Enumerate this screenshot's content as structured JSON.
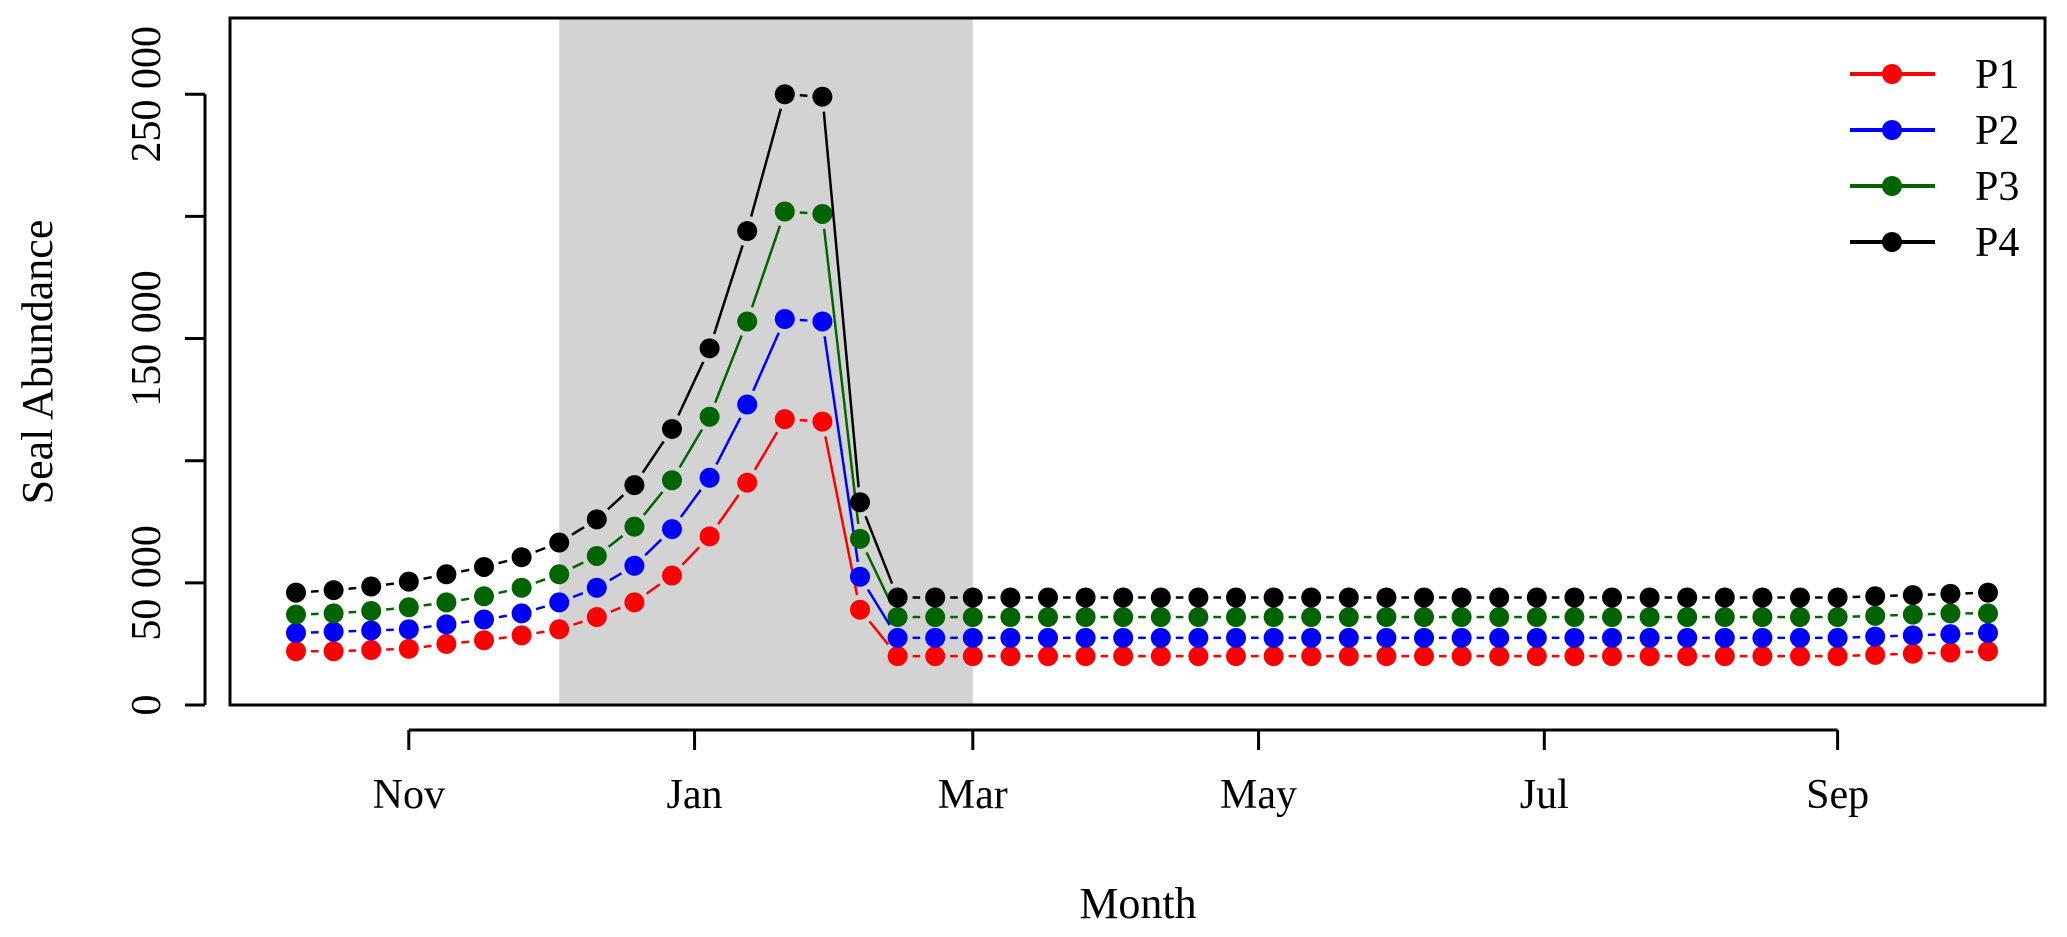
{
  "chart_data": {
    "type": "line",
    "title": "",
    "xlabel": "Month",
    "ylabel": "Seal Abundance",
    "ylim": [
      0,
      280000
    ],
    "yticks": [
      0,
      50000,
      100000,
      150000,
      200000,
      250000
    ],
    "ytick_labels": [
      "0",
      "50 000",
      "",
      "150 000",
      "",
      "250 000"
    ],
    "xtick_labels": [
      "Nov",
      "Jan",
      "Mar",
      "May",
      "Jul",
      "Sep"
    ],
    "xtick_weeks": [
      3,
      10.6,
      18,
      25.6,
      33.2,
      41
    ],
    "x_unit": "week",
    "shaded_region": {
      "from_week": 7,
      "to_week": 18
    },
    "grid": false,
    "legend_position": "top-right",
    "series": [
      {
        "name": "P1",
        "color": "#ff0000",
        "values": [
          22000,
          22000,
          22500,
          23000,
          25000,
          26500,
          28500,
          31000,
          36000,
          42000,
          53000,
          69000,
          91000,
          117000,
          116000,
          39000,
          20000,
          20000,
          20000,
          20000,
          20000,
          20000,
          20000,
          20000,
          20000,
          20000,
          20000,
          20000,
          20000,
          20000,
          20000,
          20000,
          20000,
          20000,
          20000,
          20000,
          20000,
          20000,
          20000,
          20000,
          20000,
          20000,
          20500,
          21000,
          21500,
          22000
        ]
      },
      {
        "name": "P2",
        "color": "#0000ff",
        "values": [
          29500,
          30000,
          30500,
          31000,
          33000,
          35000,
          37500,
          42000,
          48000,
          57000,
          72000,
          93000,
          123000,
          158000,
          157000,
          52500,
          27500,
          27500,
          27500,
          27500,
          27500,
          27500,
          27500,
          27500,
          27500,
          27500,
          27500,
          27500,
          27500,
          27500,
          27500,
          27500,
          27500,
          27500,
          27500,
          27500,
          27500,
          27500,
          27500,
          27500,
          27500,
          27500,
          28000,
          28500,
          29000,
          29500
        ]
      },
      {
        "name": "P3",
        "color": "#006400",
        "values": [
          37000,
          37500,
          38500,
          40000,
          42000,
          44500,
          48000,
          53500,
          61000,
          73000,
          92000,
          118000,
          157000,
          202000,
          201000,
          68000,
          36000,
          36000,
          36000,
          36000,
          36000,
          36000,
          36000,
          36000,
          36000,
          36000,
          36000,
          36000,
          36000,
          36000,
          36000,
          36000,
          36000,
          36000,
          36000,
          36000,
          36000,
          36000,
          36000,
          36000,
          36000,
          36000,
          36500,
          37000,
          37500,
          37500
        ]
      },
      {
        "name": "P4",
        "color": "#000000",
        "values": [
          46000,
          47000,
          48500,
          50500,
          53500,
          56500,
          60500,
          66500,
          76000,
          90000,
          113000,
          146000,
          194000,
          250000,
          249000,
          83000,
          44000,
          44000,
          44000,
          44000,
          44000,
          44000,
          44000,
          44000,
          44000,
          44000,
          44000,
          44000,
          44000,
          44000,
          44000,
          44000,
          44000,
          44000,
          44000,
          44000,
          44000,
          44000,
          44000,
          44000,
          44000,
          44000,
          44500,
          45000,
          45500,
          46000
        ]
      }
    ]
  }
}
